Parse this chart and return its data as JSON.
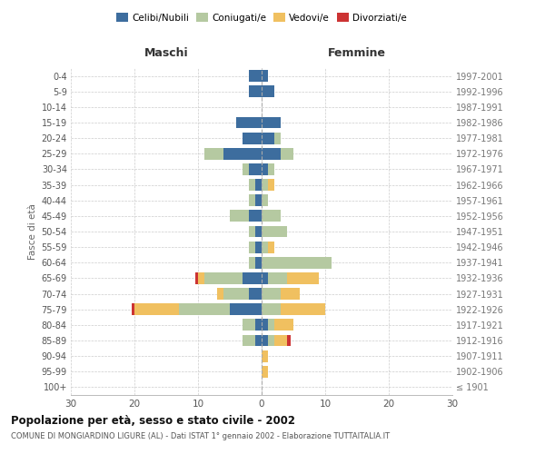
{
  "age_groups": [
    "100+",
    "95-99",
    "90-94",
    "85-89",
    "80-84",
    "75-79",
    "70-74",
    "65-69",
    "60-64",
    "55-59",
    "50-54",
    "45-49",
    "40-44",
    "35-39",
    "30-34",
    "25-29",
    "20-24",
    "15-19",
    "10-14",
    "5-9",
    "0-4"
  ],
  "birth_years": [
    "≤ 1901",
    "1902-1906",
    "1907-1911",
    "1912-1916",
    "1917-1921",
    "1922-1926",
    "1927-1931",
    "1932-1936",
    "1937-1941",
    "1942-1946",
    "1947-1951",
    "1952-1956",
    "1957-1961",
    "1962-1966",
    "1967-1971",
    "1972-1976",
    "1977-1981",
    "1982-1986",
    "1987-1991",
    "1992-1996",
    "1997-2001"
  ],
  "males": {
    "celibi": [
      0,
      0,
      0,
      1,
      1,
      5,
      2,
      3,
      1,
      1,
      1,
      2,
      1,
      1,
      2,
      6,
      3,
      4,
      0,
      2,
      2
    ],
    "coniugati": [
      0,
      0,
      0,
      2,
      2,
      8,
      4,
      6,
      1,
      1,
      1,
      3,
      1,
      1,
      1,
      3,
      0,
      0,
      0,
      0,
      0
    ],
    "vedovi": [
      0,
      0,
      0,
      0,
      0,
      7,
      1,
      1,
      0,
      0,
      0,
      0,
      0,
      0,
      0,
      0,
      0,
      0,
      0,
      0,
      0
    ],
    "divorziati": [
      0,
      0,
      0,
      0,
      0,
      0.5,
      0,
      0.5,
      0,
      0,
      0,
      0,
      0,
      0,
      0,
      0,
      0,
      0,
      0,
      0,
      0
    ]
  },
  "females": {
    "nubili": [
      0,
      0,
      0,
      1,
      1,
      0,
      0,
      1,
      0,
      0,
      0,
      0,
      0,
      0,
      1,
      3,
      2,
      3,
      0,
      2,
      1
    ],
    "coniugate": [
      0,
      0,
      0,
      1,
      1,
      3,
      3,
      3,
      11,
      1,
      4,
      3,
      1,
      1,
      1,
      2,
      1,
      0,
      0,
      0,
      0
    ],
    "vedove": [
      0,
      1,
      1,
      2,
      3,
      7,
      3,
      5,
      0,
      1,
      0,
      0,
      0,
      1,
      0,
      0,
      0,
      0,
      0,
      0,
      0
    ],
    "divorziate": [
      0,
      0,
      0,
      0.5,
      0,
      0,
      0,
      0,
      0,
      0,
      0,
      0,
      0,
      0,
      0,
      0,
      0,
      0,
      0,
      0,
      0
    ]
  },
  "colors": {
    "celibi": "#3d6d9e",
    "coniugati": "#b5c9a1",
    "vedovi": "#f0c060",
    "divorziati": "#cc3333"
  },
  "xlim": 30,
  "title": "Popolazione per età, sesso e stato civile - 2002",
  "subtitle": "COMUNE DI MONGIARDINO LIGURE (AL) - Dati ISTAT 1° gennaio 2002 - Elaborazione TUTTAITALIA.IT",
  "ylabel_left": "Fasce di età",
  "header_left": "Maschi",
  "header_right": "Femmine"
}
